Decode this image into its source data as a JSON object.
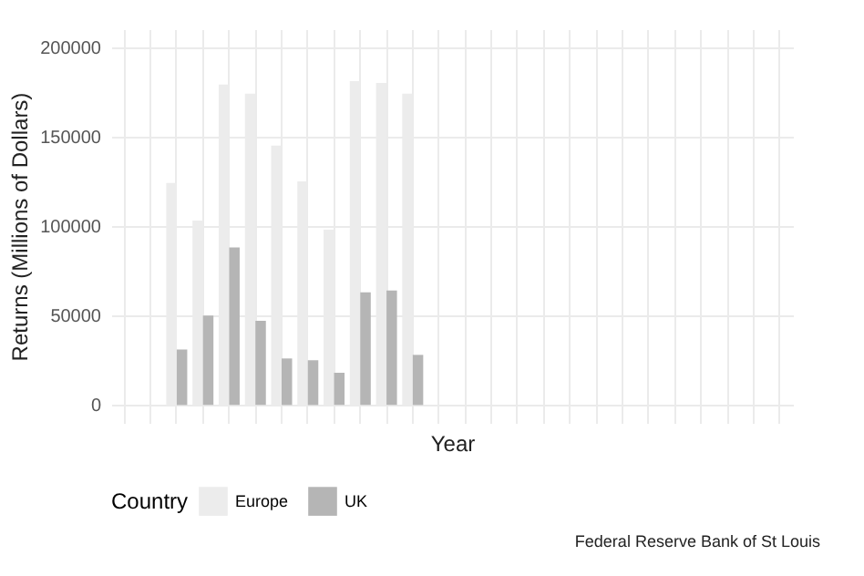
{
  "chart_data": {
    "type": "bar",
    "xlabel": "Year",
    "ylabel": "Returns (Millions of Dollars)",
    "legend_title": "Country",
    "categories": [
      null,
      null,
      null,
      null,
      null,
      null,
      null,
      null,
      null,
      null,
      null,
      null,
      null,
      null,
      null,
      null,
      null,
      null,
      null,
      null,
      null,
      null,
      null,
      null,
      null,
      null
    ],
    "series": [
      {
        "name": "Europe",
        "color": "#ececec",
        "values": [
          null,
          null,
          124000,
          103000,
          179000,
          174000,
          145000,
          125000,
          98000,
          181000,
          180000,
          174000,
          null,
          null,
          null,
          null,
          null,
          null,
          null,
          null,
          null,
          null,
          null,
          null,
          null,
          null
        ]
      },
      {
        "name": "UK",
        "color": "#b5b5b5",
        "values": [
          null,
          null,
          31000,
          50000,
          88000,
          47000,
          26000,
          25000,
          18000,
          63000,
          64000,
          28000,
          null,
          null,
          null,
          null,
          null,
          null,
          null,
          null,
          null,
          null,
          null,
          null,
          null,
          null
        ]
      }
    ],
    "ylim": [
      -10000,
      210000
    ],
    "yticks": [
      0,
      50000,
      100000,
      150000,
      200000
    ],
    "grid": true,
    "legend": "bottom",
    "annotations": [
      "Federal Reserve Bank of St Louis"
    ]
  }
}
